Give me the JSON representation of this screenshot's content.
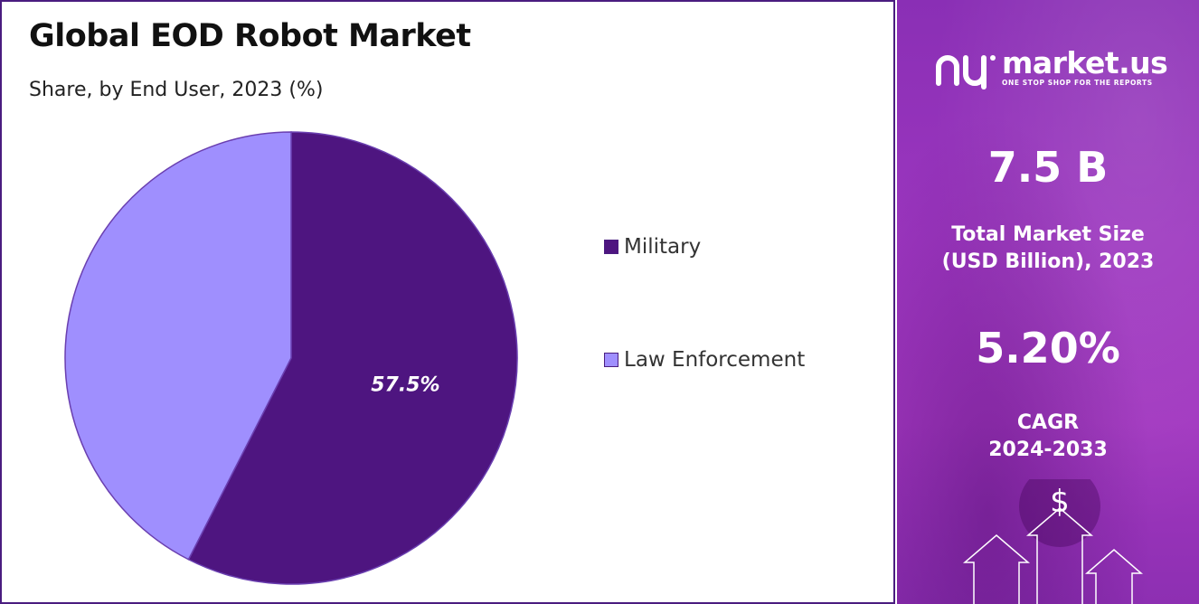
{
  "chart_data": {
    "type": "pie",
    "title": "Global EOD Robot Market",
    "subtitle": "Share, by End User, 2023 (%)",
    "slices": [
      {
        "label": "Military",
        "value": 57.5,
        "color": "#4e1580",
        "data_label": "57.5%"
      },
      {
        "label": "Law Enforcement",
        "value": 42.5,
        "color": "#9f8ffe",
        "data_label": ""
      }
    ],
    "legend_position": "right"
  },
  "side_panel": {
    "logo_text": "market.us",
    "logo_tagline": "ONE STOP SHOP FOR THE REPORTS",
    "market_size_value": "7.5 B",
    "market_size_label_line1": "Total Market Size",
    "market_size_label_line2": "(USD Billion), 2023",
    "cagr_value": "5.20%",
    "cagr_label_line1": "CAGR",
    "cagr_label_line2": "2024-2033",
    "dollar_symbol": "$"
  },
  "colors": {
    "border": "#4a1d80",
    "panel_purple": "#9c36bf"
  }
}
